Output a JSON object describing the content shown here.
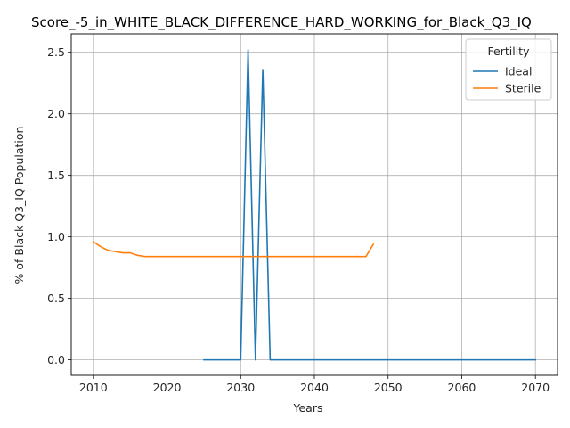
{
  "chart_data": {
    "type": "line",
    "title": "Score_-5_in_WHITE_BLACK_DIFFERENCE_HARD_WORKING_for_Black_Q3_IQ",
    "xlabel": "Years",
    "ylabel": "% of Black Q3_IQ Population",
    "xlim": [
      2007,
      2073
    ],
    "ylim": [
      -0.126,
      2.65
    ],
    "x_ticks": [
      2010,
      2020,
      2030,
      2040,
      2050,
      2060,
      2070
    ],
    "y_ticks": [
      0.0,
      0.5,
      1.0,
      1.5,
      2.0,
      2.5
    ],
    "x_tick_labels": [
      "2010",
      "2020",
      "2030",
      "2040",
      "2050",
      "2060",
      "2070"
    ],
    "y_tick_labels": [
      "0.0",
      "0.5",
      "1.0",
      "1.5",
      "2.0",
      "2.5"
    ],
    "grid": true,
    "legend": {
      "title": "Fertility",
      "placement": "top-right"
    },
    "series": [
      {
        "name": "Ideal",
        "color": "#1f77b4",
        "x": [
          2025,
          2026,
          2027,
          2028,
          2029,
          2030,
          2031,
          2032,
          2033,
          2034,
          2035,
          2040,
          2045,
          2050,
          2055,
          2060,
          2065,
          2070
        ],
        "y": [
          0,
          0,
          0,
          0,
          0,
          0,
          2.52,
          0,
          2.36,
          0,
          0,
          0,
          0,
          0,
          0,
          0,
          0,
          0
        ]
      },
      {
        "name": "Sterile",
        "color": "#ff7f0e",
        "x": [
          2010,
          2011,
          2012,
          2013,
          2014,
          2015,
          2016,
          2017,
          2018,
          2020,
          2025,
          2030,
          2035,
          2040,
          2045,
          2046,
          2047,
          2048
        ],
        "y": [
          0.96,
          0.92,
          0.89,
          0.88,
          0.87,
          0.87,
          0.85,
          0.84,
          0.84,
          0.84,
          0.84,
          0.84,
          0.84,
          0.84,
          0.84,
          0.84,
          0.84,
          0.94
        ]
      }
    ]
  }
}
